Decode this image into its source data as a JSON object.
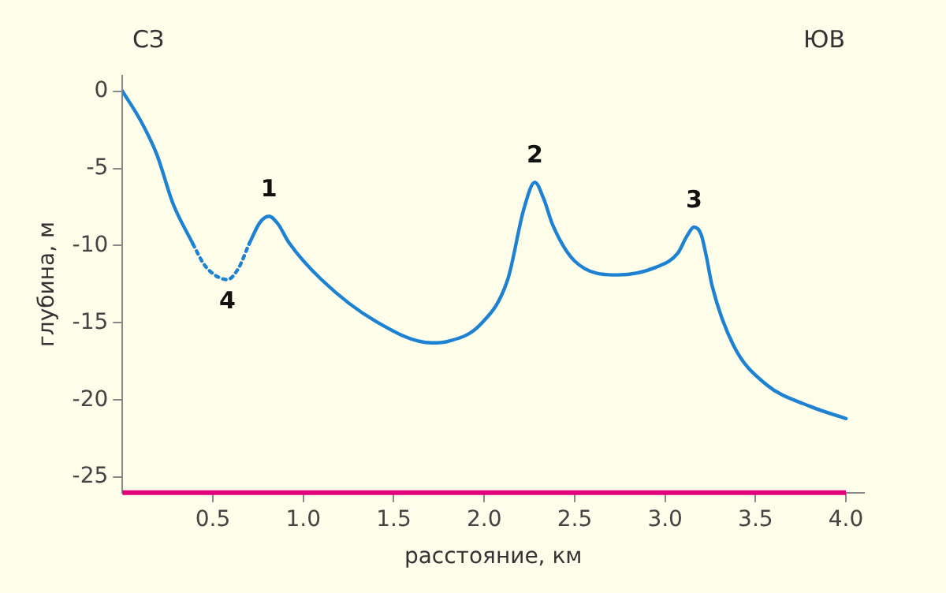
{
  "chart_data": {
    "type": "line",
    "xlabel": "расстояние, км",
    "ylabel": "глубина, м",
    "xlim": [
      0,
      4.1
    ],
    "xticks": [
      0.5,
      {
        "value": 1,
        "label": "1.0"
      },
      1.5,
      {
        "value": 2,
        "label": "2.0"
      },
      2.5,
      {
        "value": 3,
        "label": "3.0"
      },
      3.5,
      {
        "value": 4,
        "label": "4.0"
      }
    ],
    "ylim": [
      -26,
      1
    ],
    "yticks": [
      0,
      -5,
      -10,
      -15,
      -20,
      -25
    ],
    "grid": false,
    "legend": false,
    "marker": "none",
    "series": [
      {
        "color": "#1e82d2",
        "line_style": "solid",
        "x": [
          0,
          0.1,
          0.19,
          0.28,
          0.39
        ],
        "values": [
          0,
          -1.9,
          -4.1,
          -7.3,
          -9.9
        ]
      },
      {
        "color": "#1e82d2",
        "line_style": "dotted",
        "x": [
          0.39,
          0.45,
          0.51,
          0.58,
          0.64,
          0.7
        ],
        "values": [
          -9.9,
          -11.2,
          -11.9,
          -12.2,
          -11.5,
          -9.9
        ]
      },
      {
        "color": "#1e82d2",
        "line_style": "solid",
        "x": [
          0.7,
          0.76,
          0.81,
          0.86,
          0.92,
          1.1,
          1.4,
          1.71,
          1.8,
          1.98,
          2.13,
          2.22,
          2.28,
          2.33,
          2.38,
          2.5,
          2.74,
          2.95,
          3.07,
          3.12,
          3.16,
          3.2,
          3.23,
          3.26,
          3.38,
          3.56,
          3.8,
          4.0
        ],
        "values": [
          -9.9,
          -8.5,
          -8.1,
          -8.6,
          -9.8,
          -12.2,
          -14.9,
          -16.3,
          -16.2,
          -15.1,
          -12.2,
          -7.6,
          -5.9,
          -7.0,
          -8.7,
          -11.0,
          -11.9,
          -11.4,
          -10.5,
          -9.4,
          -8.8,
          -9.3,
          -10.8,
          -12.6,
          -16.5,
          -19.0,
          -20.4,
          -21.2
        ]
      }
    ],
    "ref_lines": [
      {
        "axis": "y",
        "value": -26,
        "color": "#e0007a"
      }
    ],
    "annotations": [
      "СЗ",
      "ЮВ",
      {
        "text": "1",
        "x": 0.81,
        "y": -8.1
      },
      {
        "text": "2",
        "x": 2.28,
        "y": -5.9
      },
      {
        "text": "3",
        "x": 3.16,
        "y": -8.8
      },
      {
        "text": "4",
        "x": 0.58,
        "y": -12.2
      }
    ]
  }
}
